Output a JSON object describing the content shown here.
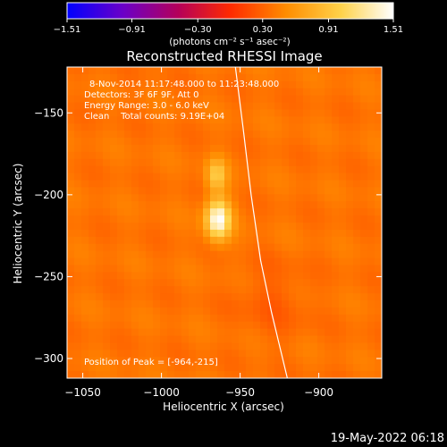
{
  "chart_data": {
    "type": "heatmap",
    "title": "Reconstructed RHESSI Image",
    "xlabel": "Heliocentric X (arcsec)",
    "ylabel": "Heliocentric Y (arcsec)",
    "xlim": [
      -1060,
      -860
    ],
    "ylim": [
      -312,
      -122
    ],
    "x_ticks": [
      -1050,
      -1000,
      -950,
      -900
    ],
    "x_tick_labels": [
      "−1050",
      "−1000",
      "−950",
      "−900"
    ],
    "y_ticks": [
      -150,
      -200,
      -250,
      -300
    ],
    "y_tick_labels": [
      "−150",
      "−200",
      "−250",
      "−300"
    ],
    "colorbar": {
      "min": -1.51,
      "max": 1.51,
      "ticks": [
        -1.51,
        -0.91,
        -0.3,
        0.3,
        0.91,
        1.51
      ],
      "tick_labels": [
        "−1.51",
        "−0.91",
        "−0.30",
        "0.30",
        "0.91",
        "1.51"
      ],
      "unit_label": "(photons cm⁻² s⁻¹ asec⁻²)",
      "colors": [
        "#0000ff",
        "#6a00c8",
        "#b4005a",
        "#ff2a00",
        "#ff8c00",
        "#ffd24a",
        "#ffffff"
      ]
    },
    "annotations": [
      "8-Nov-2014 11:17:48.000 to 11:23:48.000",
      "Detectors: 3F 6F 9F, Att 0",
      "Energy Range: 3.0 - 6.0 keV",
      "Clean    Total counts: 9.19E+04"
    ],
    "peak_label": "Position of Peak = [-964,-215]",
    "sources": [
      {
        "x": -964,
        "y": -215,
        "peak": 1.51,
        "sigma_x": 5.5,
        "sigma_y": 8.5
      },
      {
        "x": -965,
        "y": -188,
        "peak": 0.95,
        "sigma_x": 4.5,
        "sigma_y": 7
      }
    ],
    "limb_curve": [
      [
        -953,
        -122
      ],
      [
        -948,
        -160
      ],
      [
        -943,
        -200
      ],
      [
        -937,
        -240
      ],
      [
        -930,
        -272
      ],
      [
        -920,
        -312
      ]
    ],
    "timestamp": "19-May-2022 06:18"
  }
}
